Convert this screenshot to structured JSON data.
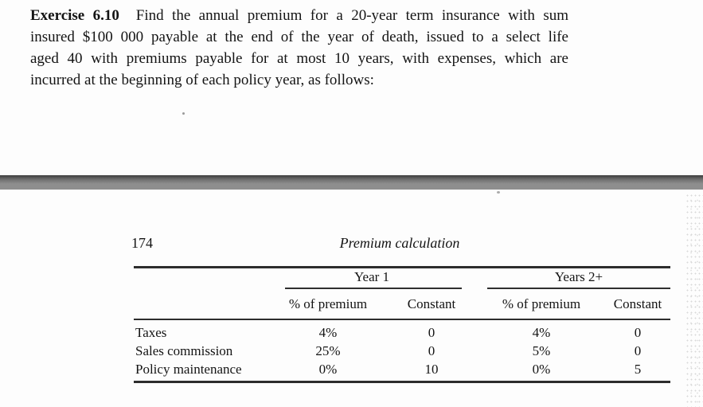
{
  "exercise": {
    "label": "Exercise 6.10",
    "lines": [
      "Find the annual premium for a 20-year term insurance with sum",
      "insured $100 000 payable at the end of the year of death, issued to a select life",
      "aged 40 with premiums payable for at most 10 years, with expenses, which are",
      "incurred at the beginning of each policy year, as follows:"
    ]
  },
  "running_head": {
    "page_number": "174",
    "title": "Premium calculation"
  },
  "table": {
    "groups": [
      {
        "label": "Year 1"
      },
      {
        "label": "Years 2+"
      }
    ],
    "sub_headers": [
      "% of premium",
      "Constant",
      "% of premium",
      "Constant"
    ],
    "rows": [
      {
        "label": "Taxes",
        "values": [
          "4%",
          "0",
          "4%",
          "0"
        ]
      },
      {
        "label": "Sales commission",
        "values": [
          "25%",
          "0",
          "5%",
          "0"
        ]
      },
      {
        "label": "Policy maintenance",
        "values": [
          "0%",
          "10",
          "0%",
          "5"
        ]
      }
    ]
  },
  "colors": {
    "band_gray": "#8e8e8e",
    "rule": "#2d2d2d",
    "paper": "#fdfdfd"
  }
}
